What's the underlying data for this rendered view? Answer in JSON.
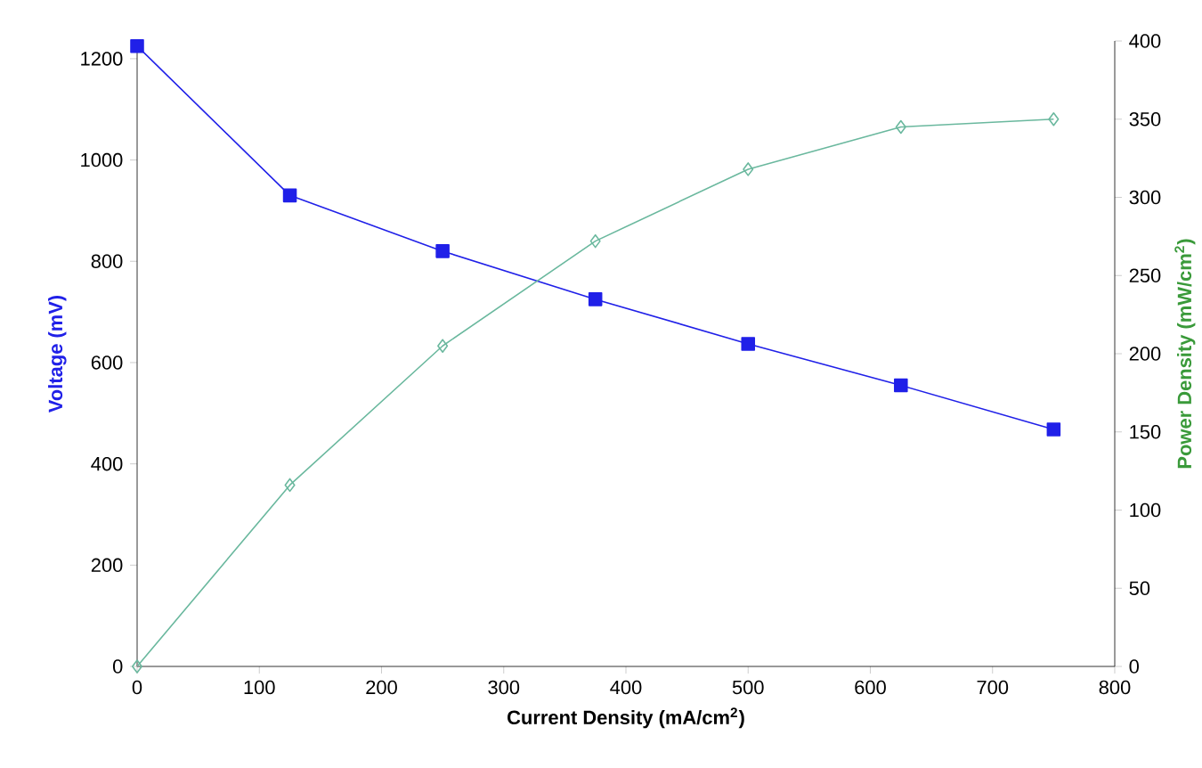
{
  "chart_data": {
    "type": "line",
    "xlabel": "Current Density (mA/cm$^{2}$)",
    "ylabel": "Voltage (mV)",
    "y2label": "Power Density (mW/cm$^{2}$)",
    "x": [
      0,
      125,
      250,
      375,
      500,
      625,
      750
    ],
    "series": [
      {
        "color": "#2020e8",
        "values": [
          1225,
          930,
          820,
          725,
          637,
          555,
          468
        ],
        "marker": "square"
      },
      {
        "color": "#6ab89e",
        "values": [
          0,
          116,
          205,
          272,
          318,
          345,
          350
        ],
        "marker": "diamond",
        "axis": "y2"
      }
    ],
    "xlim": [
      0,
      800
    ],
    "xticks": [
      0,
      100,
      200,
      300,
      400,
      500,
      600,
      700,
      800
    ],
    "ylim": [
      0,
      1235
    ],
    "yticks": [
      0,
      200,
      400,
      600,
      800,
      1000,
      1200
    ],
    "y2lim": [
      0,
      400
    ],
    "y2ticks": [
      0,
      50,
      100,
      150,
      200,
      250,
      300,
      350,
      400
    ]
  }
}
